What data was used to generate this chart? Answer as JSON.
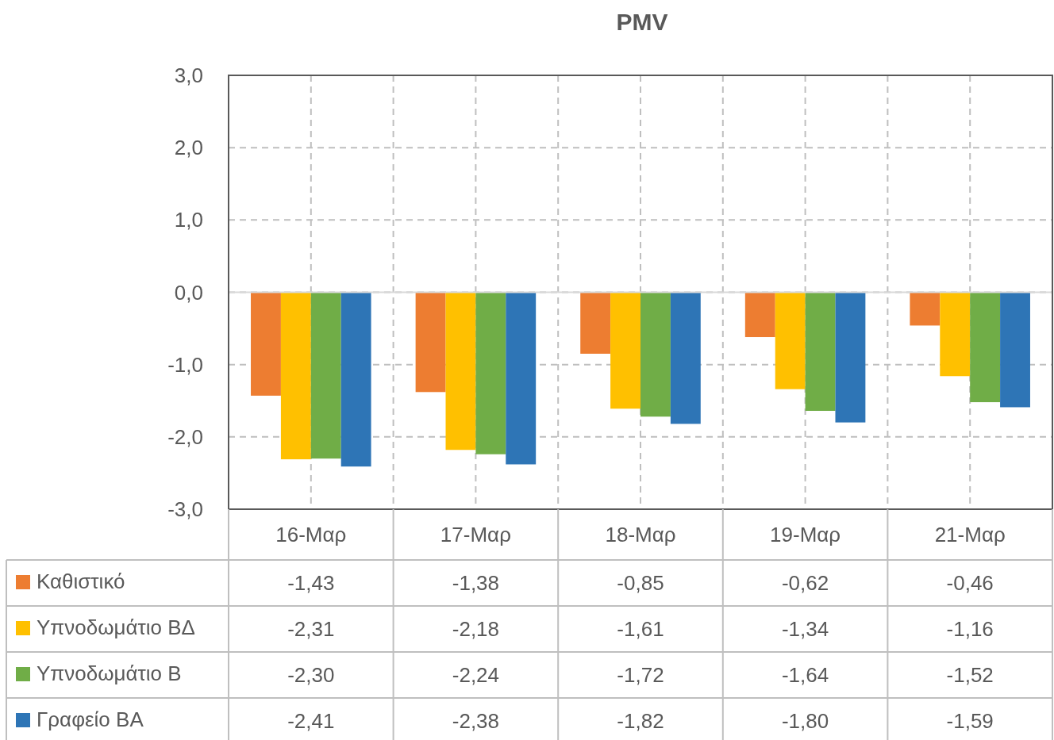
{
  "chart_data": {
    "type": "bar",
    "title": "PMV",
    "categories": [
      "16-Μαρ",
      "17-Μαρ",
      "18-Μαρ",
      "19-Μαρ",
      "21-Μαρ"
    ],
    "series": [
      {
        "name": "Καθιστικό",
        "color": "#ed7d31",
        "values": [
          -1.43,
          -1.38,
          -0.85,
          -0.62,
          -0.46
        ],
        "value_labels": [
          "-1,43",
          "-1,38",
          "-0,85",
          "-0,62",
          "-0,46"
        ]
      },
      {
        "name": "Υπνοδωμάτιο ΒΔ",
        "color": "#ffc000",
        "values": [
          -2.31,
          -2.18,
          -1.61,
          -1.34,
          -1.16
        ],
        "value_labels": [
          "-2,31",
          "-2,18",
          "-1,61",
          "-1,34",
          "-1,16"
        ]
      },
      {
        "name": "Υπνοδωμάτιο Β",
        "color": "#70ad47",
        "values": [
          -2.3,
          -2.24,
          -1.72,
          -1.64,
          -1.52
        ],
        "value_labels": [
          "-2,30",
          "-2,24",
          "-1,72",
          "-1,64",
          "-1,52"
        ]
      },
      {
        "name": "Γραφείο ΒΑ",
        "color": "#2e75b6",
        "values": [
          -2.41,
          -2.38,
          -1.82,
          -1.8,
          -1.59
        ],
        "value_labels": [
          "-2,41",
          "-2,38",
          "-1,82",
          "-1,80",
          "-1,59"
        ]
      }
    ],
    "ylim": [
      -3,
      3
    ],
    "yticks": [
      {
        "value": -3,
        "label": "-3,0"
      },
      {
        "value": -2,
        "label": "-2,0"
      },
      {
        "value": -1,
        "label": "-1,0"
      },
      {
        "value": 0,
        "label": "0,0"
      },
      {
        "value": 1,
        "label": "1,0"
      },
      {
        "value": 2,
        "label": "2,0"
      },
      {
        "value": 3,
        "label": "3,0"
      }
    ],
    "grid": true,
    "legend": "bottom"
  }
}
